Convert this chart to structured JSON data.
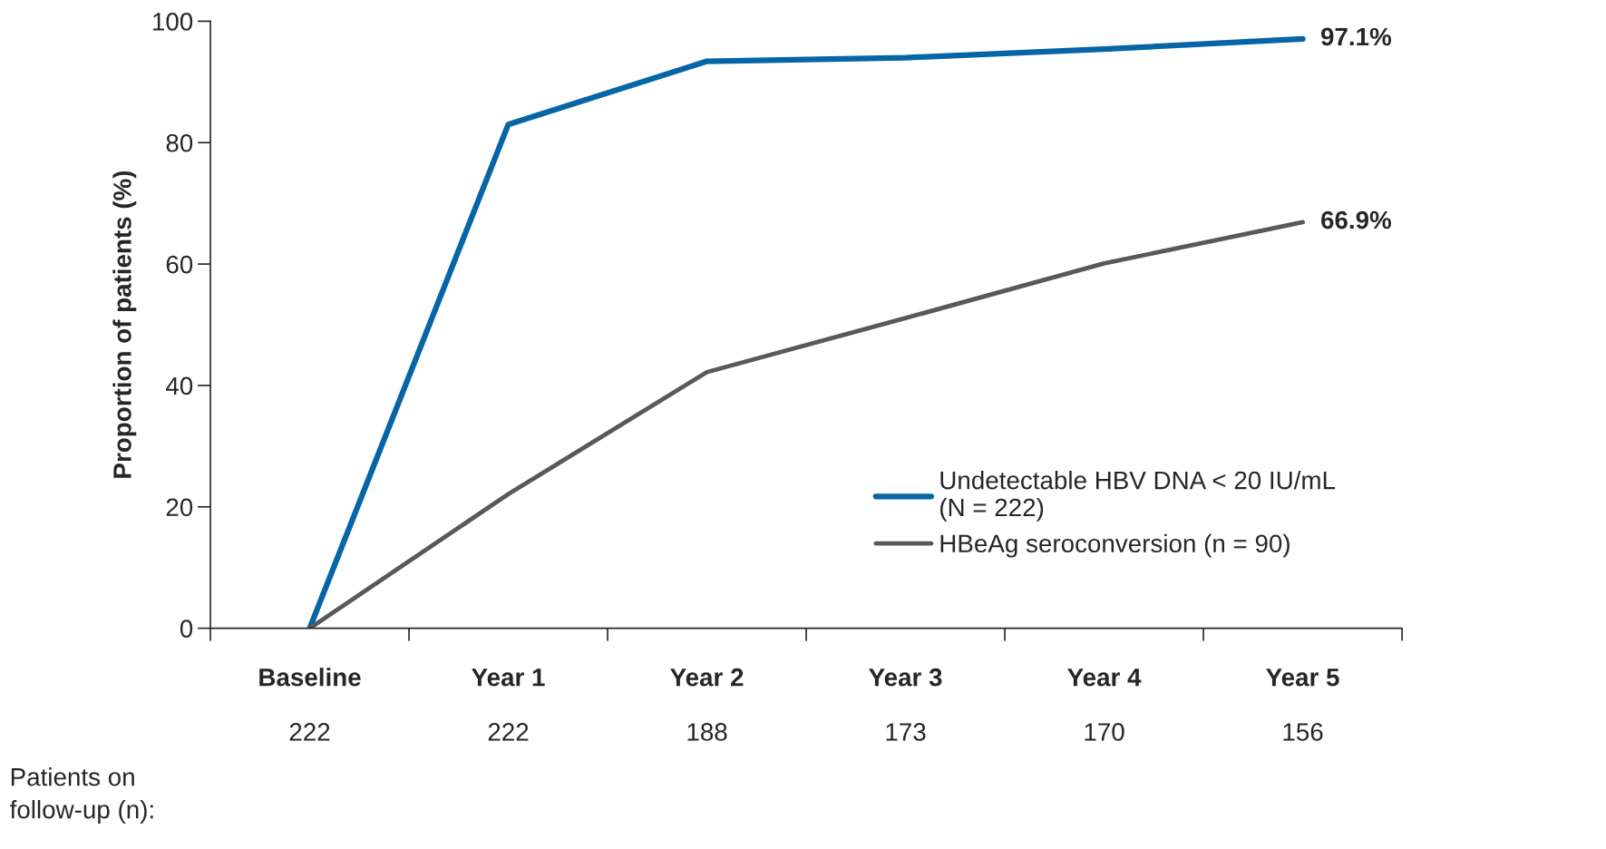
{
  "chart_data": {
    "type": "line",
    "ylabel": "Proportion of patients (%)",
    "categories": [
      "Baseline",
      "Year 1",
      "Year 2",
      "Year 3",
      "Year 4",
      "Year 5"
    ],
    "series": [
      {
        "name": "Undetectable HBV DNA < 20 IU/mL\n(N = 222)",
        "color": "#0565a6",
        "values": [
          0,
          83.0,
          93.4,
          94.0,
          95.4,
          97.1
        ],
        "value_labels": [
          null,
          null,
          null,
          null,
          null,
          "97.1%"
        ]
      },
      {
        "name": "HBeAg seroconversion (n = 90)",
        "color": "#595959",
        "values": [
          0,
          22.1,
          42.2,
          51.1,
          60.1,
          66.9
        ],
        "value_labels": [
          null,
          null,
          null,
          null,
          null,
          "66.9%"
        ]
      }
    ],
    "ylim": [
      0,
      100
    ],
    "yticks": [
      0,
      20,
      40,
      60,
      80,
      100
    ],
    "grid": false,
    "legend": "bottom right",
    "marker": "none",
    "line_style": "solid",
    "annotations": [
      "Patients on\nfollow-up (n):",
      "222",
      "222",
      "188",
      "173",
      "170",
      "156"
    ]
  }
}
